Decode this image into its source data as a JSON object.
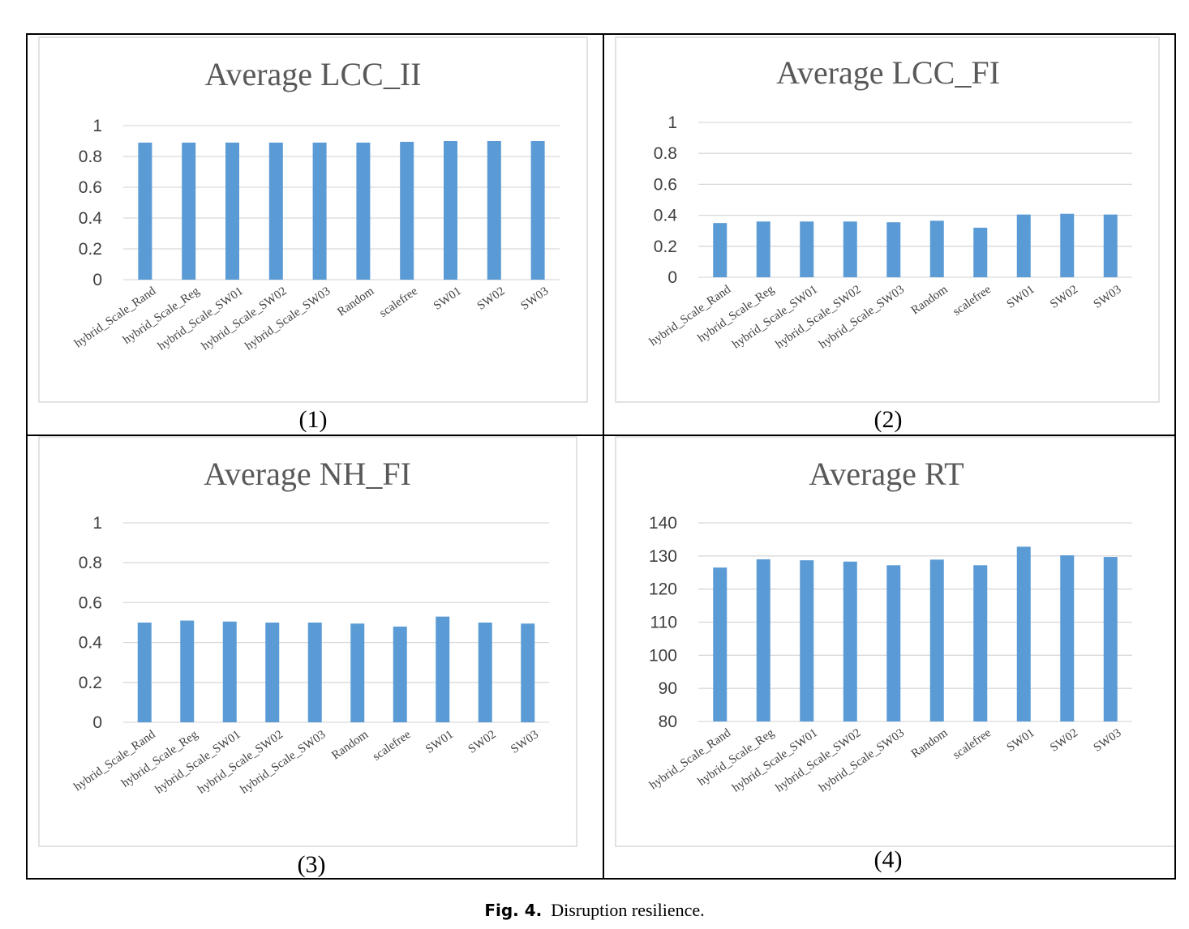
{
  "caption": {
    "label": "Fig. 4.",
    "text": "Disruption resilience."
  },
  "colors": {
    "bar": "#5b9bd5",
    "grid": "#d9d9d9",
    "frame": "#d9d9d9"
  },
  "chart_data": [
    {
      "type": "bar",
      "title": "Average LCC_II",
      "panel_label": "(1)",
      "categories": [
        "hybrid_Scale_Rand",
        "hybrid_Scale_Reg",
        "hybrid_Scale_SW01",
        "hybrid_Scale_SW02",
        "hybrid_Scale_SW03",
        "Random",
        "scalefree",
        "SW01",
        "SW02",
        "SW03"
      ],
      "values": [
        0.89,
        0.89,
        0.89,
        0.89,
        0.89,
        0.89,
        0.895,
        0.9,
        0.9,
        0.9
      ],
      "ylim": [
        0,
        1
      ],
      "yticks": [
        "0",
        "0.2",
        "0.4",
        "0.6",
        "0.8",
        "1"
      ],
      "grid": true
    },
    {
      "type": "bar",
      "title": "Average LCC_FI",
      "panel_label": "(2)",
      "categories": [
        "hybrid_Scale_Rand",
        "hybrid_Scale_Reg",
        "hybrid_Scale_SW01",
        "hybrid_Scale_SW02",
        "hybrid_Scale_SW03",
        "Random",
        "scalefree",
        "SW01",
        "SW02",
        "SW03"
      ],
      "values": [
        0.35,
        0.36,
        0.36,
        0.36,
        0.355,
        0.365,
        0.32,
        0.405,
        0.41,
        0.405
      ],
      "ylim": [
        0,
        1
      ],
      "yticks": [
        "0",
        "0.2",
        "0.4",
        "0.6",
        "0.8",
        "1"
      ],
      "grid": true
    },
    {
      "type": "bar",
      "title": "Average NH_FI",
      "panel_label": "(3)",
      "categories": [
        "hybrid_Scale_Rand",
        "hybrid_Scale_Reg",
        "hybrid_Scale_SW01",
        "hybrid_Scale_SW02",
        "hybrid_Scale_SW03",
        "Random",
        "scalefree",
        "SW01",
        "SW02",
        "SW03"
      ],
      "values": [
        0.5,
        0.51,
        0.505,
        0.5,
        0.5,
        0.495,
        0.48,
        0.53,
        0.5,
        0.495
      ],
      "ylim": [
        0,
        1
      ],
      "yticks": [
        "0",
        "0.2",
        "0.4",
        "0.6",
        "0.8",
        "1"
      ],
      "grid": true
    },
    {
      "type": "bar",
      "title": "Average RT",
      "panel_label": "(4)",
      "categories": [
        "hybrid_Scale_Rand",
        "hybrid_Scale_Reg",
        "hybrid_Scale_SW01",
        "hybrid_Scale_SW02",
        "hybrid_Scale_SW03",
        "Random",
        "scalefree",
        "SW01",
        "SW02",
        "SW03"
      ],
      "values": [
        126.5,
        129,
        128.7,
        128.3,
        127.2,
        128.9,
        127.2,
        132.8,
        130.2,
        129.7
      ],
      "ylim": [
        80,
        140
      ],
      "yticks": [
        "80",
        "90",
        "100",
        "110",
        "120",
        "130",
        "140"
      ],
      "grid": true
    }
  ]
}
